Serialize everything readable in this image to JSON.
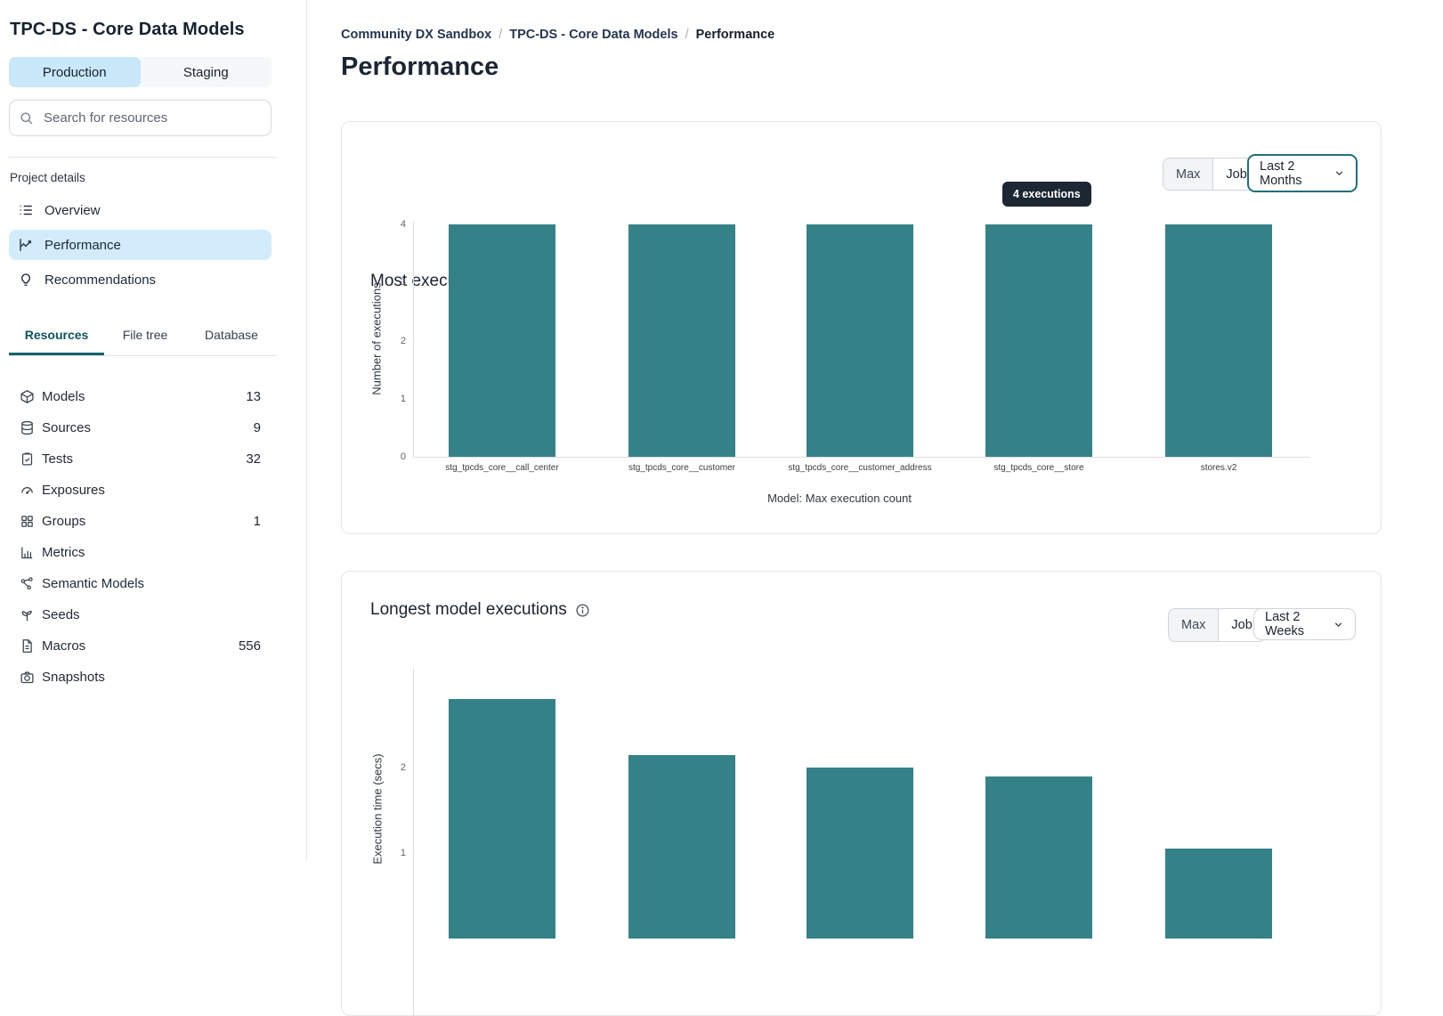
{
  "colors": {
    "chart_bar": "#348288",
    "accent_teal": "#15606a",
    "selection_blue": "#c9e8fa",
    "nav_highlight_blue": "#d3ecfb",
    "tooltip_bg": "#1c2733"
  },
  "sidebar": {
    "project_title": "TPC-DS - Core Data Models",
    "env_tabs": [
      {
        "label": "Production",
        "active": true
      },
      {
        "label": "Staging",
        "active": false
      }
    ],
    "search": {
      "placeholder": "Search for resources"
    },
    "section_label": "Project details",
    "nav": [
      {
        "label": "Overview",
        "icon": "list",
        "active": false
      },
      {
        "label": "Performance",
        "icon": "trend",
        "active": true
      },
      {
        "label": "Recommendations",
        "icon": "lightbulb",
        "active": false
      }
    ],
    "tabs": [
      {
        "label": "Resources",
        "active": true
      },
      {
        "label": "File tree",
        "active": false
      },
      {
        "label": "Database",
        "active": false
      }
    ],
    "resources": [
      {
        "label": "Models",
        "icon": "cube",
        "count": "13"
      },
      {
        "label": "Sources",
        "icon": "database",
        "count": "9"
      },
      {
        "label": "Tests",
        "icon": "clipboard",
        "count": "32"
      },
      {
        "label": "Exposures",
        "icon": "gauge",
        "count": ""
      },
      {
        "label": "Groups",
        "icon": "grid",
        "count": "1"
      },
      {
        "label": "Metrics",
        "icon": "barchart",
        "count": ""
      },
      {
        "label": "Semantic Models",
        "icon": "network",
        "count": ""
      },
      {
        "label": "Seeds",
        "icon": "seedling",
        "count": ""
      },
      {
        "label": "Macros",
        "icon": "document",
        "count": "556"
      },
      {
        "label": "Snapshots",
        "icon": "camera",
        "count": ""
      }
    ]
  },
  "breadcrumb": [
    "Community DX Sandbox",
    "TPC-DS - Core Data Models",
    "Performance"
  ],
  "page_title": "Performance",
  "cards": [
    {
      "title": "Most executed models",
      "toggle": [
        "Max",
        "Job"
      ],
      "range": "Last 2 Months",
      "tooltip": "4 executions"
    },
    {
      "title": "Longest model executions",
      "toggle": [
        "Max",
        "Job"
      ],
      "range": "Last 2 Weeks"
    }
  ],
  "chart_data": [
    {
      "type": "bar",
      "title": "Most executed models",
      "categories": [
        "stg_tpcds_core__call_center",
        "stg_tpcds_core__customer",
        "stg_tpcds_core__customer_address",
        "stg_tpcds_core__store",
        "stores.v2"
      ],
      "values": [
        4,
        4,
        4,
        4,
        4
      ],
      "xlabel": "Model: Max execution count",
      "ylabel": "Number of executions",
      "ylim": [
        0,
        4
      ],
      "y_ticks": [
        0,
        1,
        2,
        3,
        4
      ],
      "grid": false,
      "tooltip_label": "4 executions"
    },
    {
      "type": "bar",
      "title": "Longest model executions",
      "categories": [],
      "values": [
        2.8,
        2.15,
        2.0,
        1.9,
        1.05
      ],
      "xlabel": "",
      "ylabel": "Execution time (secs)",
      "ylim": [
        0,
        3
      ],
      "y_ticks": [
        1,
        2
      ],
      "grid": false
    }
  ]
}
